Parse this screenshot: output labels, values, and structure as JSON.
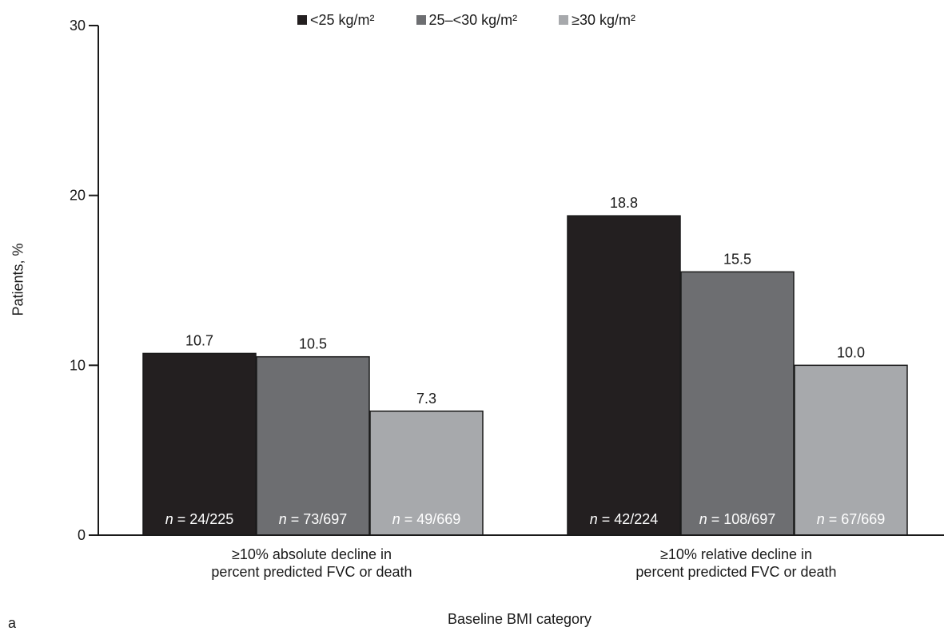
{
  "chart_data": {
    "type": "bar",
    "panel_label": "a",
    "title": "",
    "xlabel": "Baseline BMI category",
    "ylabel": "Patients, %",
    "ylim": [
      0,
      30
    ],
    "yticks": [
      "0",
      "10",
      "20",
      "30"
    ],
    "grid": false,
    "legend_position": "top-center",
    "categories": [
      [
        "≥10% absolute decline in",
        "percent predicted FVC or death"
      ],
      [
        "≥10% relative decline in",
        "percent predicted FVC or death"
      ]
    ],
    "series": [
      {
        "name": "<25 kg/m²",
        "color": "#231f20",
        "values": [
          10.7,
          18.8
        ],
        "labels": [
          "10.7",
          "18.8"
        ],
        "n": [
          "24/225",
          "42/224"
        ]
      },
      {
        "name": "25–<30 kg/m²",
        "color": "#6d6e71",
        "values": [
          10.5,
          15.5
        ],
        "labels": [
          "10.5",
          "15.5"
        ],
        "n": [
          "73/697",
          "108/697"
        ]
      },
      {
        "name": "≥30 kg/m²",
        "color": "#a7a9ac",
        "values": [
          7.3,
          10.0
        ],
        "labels": [
          "7.3",
          "10.0"
        ],
        "n": [
          "49/669",
          "67/669"
        ]
      }
    ]
  }
}
